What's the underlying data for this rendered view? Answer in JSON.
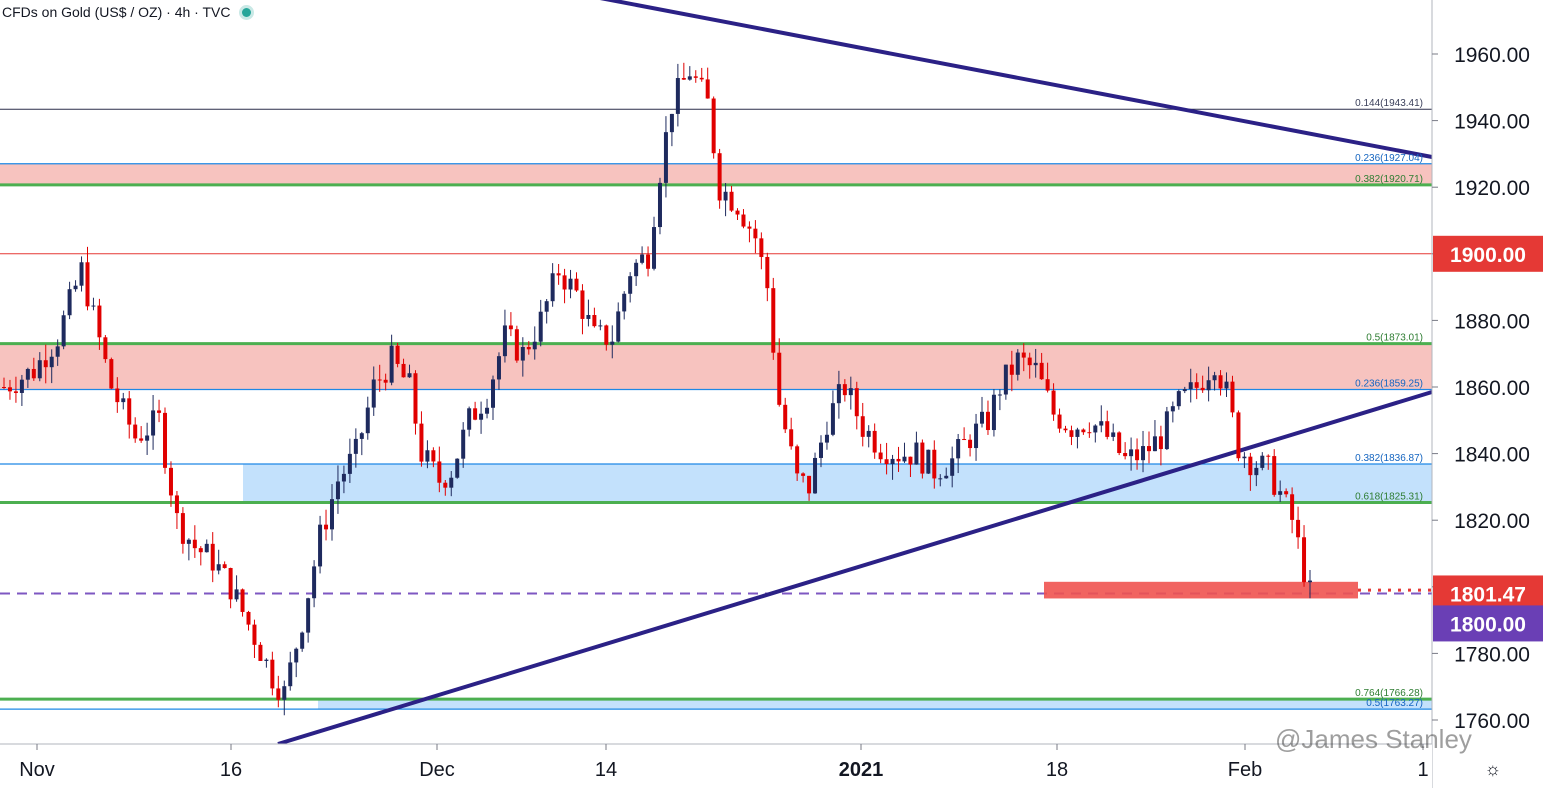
{
  "header": {
    "title": "CFDs on Gold (US$ / OZ) · 4h · TVC"
  },
  "watermark": "@James Stanley",
  "colors": {
    "up": "#1e2a5e",
    "down": "#e00000",
    "trendline": "#2b2186",
    "support_zone": "#f6b8b4",
    "blue_zone": "#b9dcfb",
    "green_line": "#4caf50",
    "blue_line": "#1e88e5",
    "red_line": "#e53935",
    "purple_dash": "#7e57c2"
  },
  "chart_data": {
    "type": "candlestick",
    "title": "CFDs on Gold (US$ / OZ) · 4h · TVC",
    "x_tick_labels": [
      "Nov",
      "16",
      "Dec",
      "14",
      "2021",
      "18",
      "Feb",
      "1"
    ],
    "y_tick_labels": [
      "1760.00",
      "1780.00",
      "1800.00",
      "1820.00",
      "1840.00",
      "1860.00",
      "1880.00",
      "1900.00",
      "1920.00",
      "1940.00",
      "1960.00"
    ],
    "ylim": [
      1754,
      1976
    ],
    "price_badges": [
      {
        "label": "1900.00",
        "value": 1900,
        "color": "#e53935"
      },
      {
        "label": "1801.47",
        "value": 1798,
        "color": "#e53935"
      },
      {
        "label": "1800.00",
        "value": 1789,
        "color": "#6a3fb5"
      }
    ],
    "fib_levels": [
      {
        "label": "0.144(1943.41)",
        "value": 1943.41,
        "color": "#2b2f4a"
      },
      {
        "label": "0.236(1927.04)",
        "value": 1927.04,
        "color": "#1e88e5"
      },
      {
        "label": "0.382(1920.71)",
        "value": 1920.71,
        "color": "#4caf50"
      },
      {
        "label": "0.5(1873.01)",
        "value": 1873.01,
        "color": "#4caf50"
      },
      {
        "label": "0.236(1859.25)",
        "value": 1859.25,
        "color": "#1e88e5"
      },
      {
        "label": "0.382(1836.87)",
        "value": 1836.87,
        "color": "#1e88e5"
      },
      {
        "label": "0.618(1825.31)",
        "value": 1825.31,
        "color": "#4caf50"
      },
      {
        "label": "0.764(1766.28)",
        "value": 1766.28,
        "color": "#4caf50"
      },
      {
        "label": "0.5(1763.27)",
        "value": 1763.27,
        "color": "#1e88e5"
      }
    ],
    "zones": [
      {
        "name": "upper",
        "from": 1920.71,
        "to": 1927.04,
        "color": "#f6b8b4"
      },
      {
        "name": "middle",
        "from": 1859.25,
        "to": 1873.01,
        "color": "#f6b8b4"
      },
      {
        "name": "lower",
        "from": 1825.31,
        "to": 1836.87,
        "color": "#b9dcfb"
      },
      {
        "name": "bottom",
        "from": 1763.27,
        "to": 1766.28,
        "color": "#b9dcfb"
      }
    ],
    "horizontal_lines": [
      {
        "value": 1900,
        "color": "#e53935",
        "style": "solid"
      },
      {
        "value": 1798,
        "color": "#7e57c2",
        "style": "dashed"
      }
    ],
    "series": [
      {
        "name": "",
        "path": [
          [
            0,
            1860
          ],
          [
            5,
            1865
          ],
          [
            9,
            1875
          ],
          [
            13,
            1895
          ],
          [
            18,
            1860
          ],
          [
            22,
            1845
          ],
          [
            26,
            1850
          ],
          [
            29,
            1820
          ],
          [
            32,
            1812
          ],
          [
            35,
            1808
          ],
          [
            38,
            1800
          ],
          [
            42,
            1785
          ],
          [
            45,
            1773
          ],
          [
            47,
            1768
          ],
          [
            50,
            1790
          ],
          [
            53,
            1815
          ],
          [
            56,
            1832
          ],
          [
            59,
            1840
          ],
          [
            62,
            1860
          ],
          [
            65,
            1868
          ],
          [
            68,
            1860
          ],
          [
            70,
            1840
          ],
          [
            73,
            1832
          ],
          [
            75,
            1835
          ],
          [
            78,
            1850
          ],
          [
            81,
            1858
          ],
          [
            84,
            1875
          ],
          [
            87,
            1870
          ],
          [
            90,
            1880
          ],
          [
            93,
            1895
          ],
          [
            96,
            1888
          ],
          [
            99,
            1875
          ],
          [
            102,
            1875
          ],
          [
            105,
            1895
          ],
          [
            108,
            1900
          ],
          [
            110,
            1925
          ],
          [
            112,
            1945
          ],
          [
            115,
            1955
          ],
          [
            118,
            1945
          ],
          [
            120,
            1920
          ],
          [
            123,
            1915
          ],
          [
            126,
            1905
          ],
          [
            128,
            1890
          ],
          [
            130,
            1855
          ],
          [
            133,
            1832
          ],
          [
            135,
            1830
          ],
          [
            138,
            1850
          ],
          [
            141,
            1860
          ],
          [
            144,
            1848
          ],
          [
            147,
            1842
          ],
          [
            150,
            1840
          ],
          [
            153,
            1840
          ],
          [
            156,
            1835
          ],
          [
            159,
            1838
          ],
          [
            162,
            1845
          ],
          [
            165,
            1850
          ],
          [
            167,
            1860
          ],
          [
            170,
            1868
          ],
          [
            173,
            1865
          ],
          [
            176,
            1852
          ],
          [
            179,
            1848
          ],
          [
            182,
            1850
          ],
          [
            185,
            1845
          ],
          [
            188,
            1838
          ],
          [
            191,
            1840
          ],
          [
            194,
            1845
          ],
          [
            197,
            1855
          ],
          [
            200,
            1860
          ],
          [
            203,
            1868
          ],
          [
            205,
            1858
          ],
          [
            207,
            1842
          ],
          [
            209,
            1838
          ],
          [
            212,
            1835
          ],
          [
            214,
            1828
          ],
          [
            216,
            1820
          ],
          [
            218,
            1805
          ],
          [
            219,
            1798
          ]
        ]
      }
    ]
  }
}
